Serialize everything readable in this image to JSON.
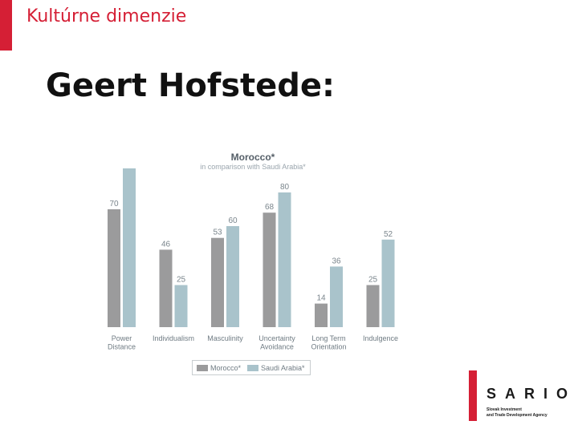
{
  "header": {
    "title": "Kultúrne dimenzie"
  },
  "slide": {
    "heading": "Geert Hofstede:"
  },
  "colors": {
    "accent": "#d51f35",
    "morocco": "#9b9b9c",
    "saudi": "#a9c3cb"
  },
  "chart_data": {
    "type": "bar",
    "title": "Morocco*",
    "subtitle": "in comparison with Saudi Arabia*",
    "categories": [
      [
        "Power",
        "Distance"
      ],
      [
        "Individualism"
      ],
      [
        "Masculinity"
      ],
      [
        "Uncertainty",
        "Avoidance"
      ],
      [
        "Long Term",
        "Orientation"
      ],
      [
        "Indulgence"
      ]
    ],
    "series": [
      {
        "name": "Morocco*",
        "color": "#9b9b9c",
        "values": [
          70,
          46,
          53,
          68,
          14,
          25
        ]
      },
      {
        "name": "Saudi Arabia*",
        "color": "#a9c3cb",
        "values": [
          95,
          25,
          60,
          80,
          36,
          52
        ]
      }
    ],
    "ylim": [
      0,
      100
    ],
    "grid": false,
    "legend_position": "bottom"
  },
  "logo": {
    "word": "SARIO",
    "tagline_1": "Slovak Investment",
    "tagline_2": "and Trade Development Agency"
  }
}
